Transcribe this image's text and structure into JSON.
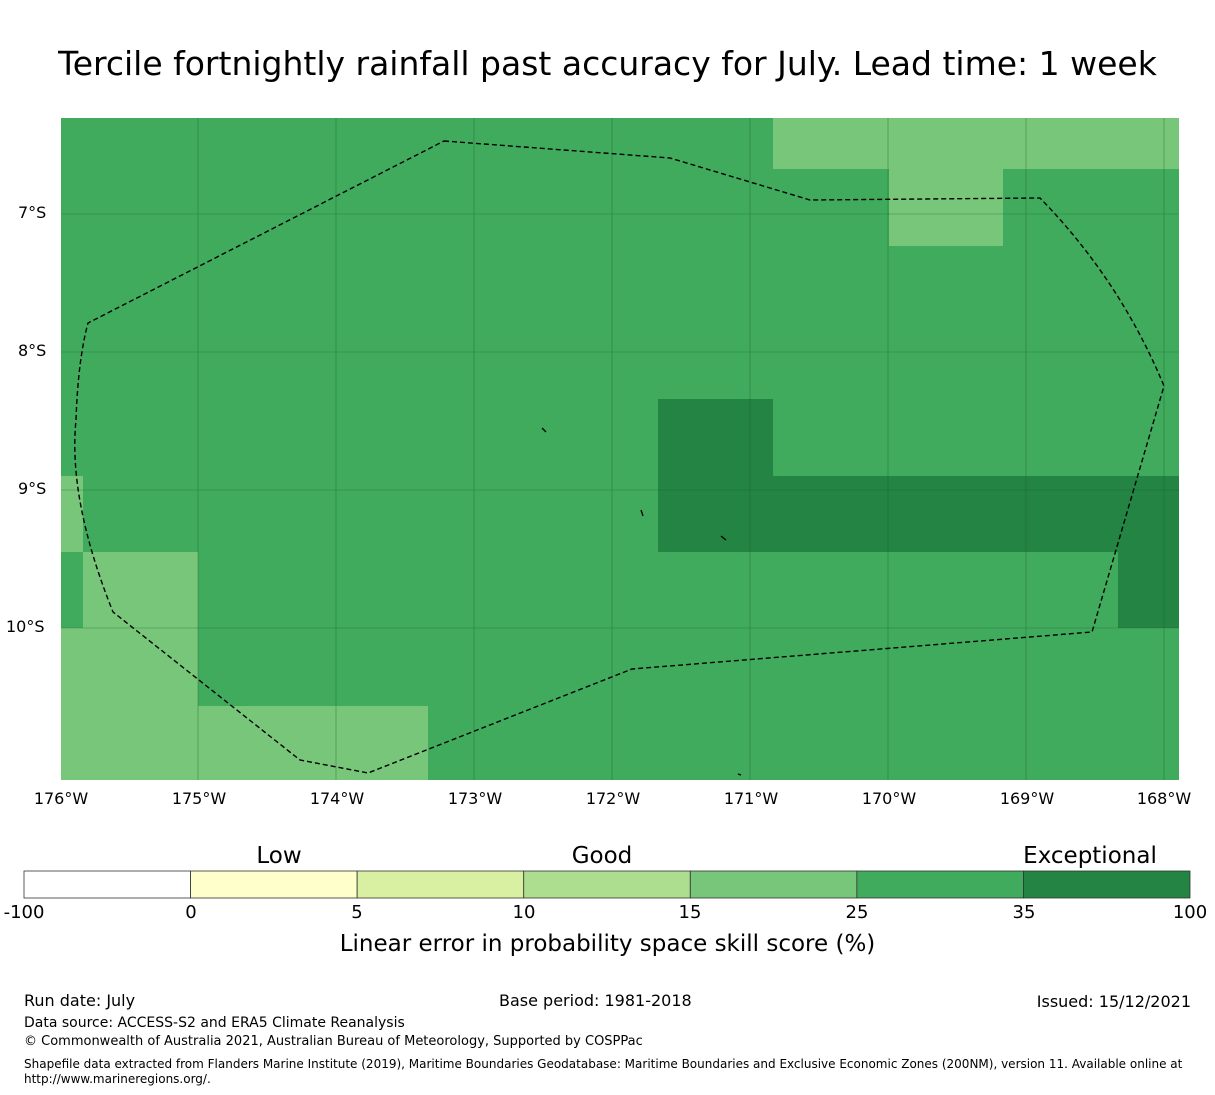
{
  "title": "Tercile fortnightly rainfall past accuracy for July. Lead time: 1 week",
  "map": {
    "lon_ticks": [
      "176°W",
      "175°W",
      "174°W",
      "173°W",
      "172°W",
      "171°W",
      "170°W",
      "169°W",
      "168°W"
    ],
    "lat_ticks": [
      "7°S",
      "8°S",
      "9°S",
      "10°S"
    ],
    "grid": true,
    "boundary_style": "dashed",
    "colors": {
      "background_class": "#41ab5d",
      "lighter_class": "#78c679",
      "darker_class": "#238443"
    }
  },
  "colorbar": {
    "category_labels": [
      "Low",
      "Good",
      "Exceptional"
    ],
    "tick_labels": [
      "-100",
      "0",
      "5",
      "10",
      "15",
      "25",
      "35",
      "100"
    ],
    "colors": [
      "#ffffff",
      "#ffffcc",
      "#d9f0a3",
      "#addd8e",
      "#78c679",
      "#41ab5d",
      "#238443"
    ],
    "label": "Linear error in probability space skill score (%)"
  },
  "footer": {
    "run_date": "Run date: July",
    "base_period": "Base period: 1981-2018",
    "issued": "Issued: 15/12/2021",
    "data_source": "Data source: ACCESS-S2 and ERA5 Climate Reanalysis",
    "copyright": "© Commonwealth of Australia 2021, Australian Bureau of Meteorology, Supported by COSPPac",
    "shapefile_line1": "Shapefile data extracted from Flanders Marine Institute (2019), Maritime Boundaries Geodatabase: Maritime Boundaries and Exclusive Economic Zones (200NM), version 11. Available online at",
    "shapefile_line2": "http://www.marineregions.org/."
  }
}
